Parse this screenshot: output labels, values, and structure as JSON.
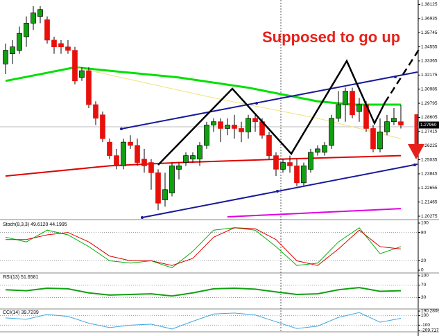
{
  "chart_data": [
    {
      "type": "candlestick",
      "ylim": [
        1.2016,
        1.3827
      ],
      "yticks": [
        1.20275,
        1.21465,
        1.22655,
        1.23845,
        1.25035,
        1.26225,
        1.27415,
        1.28605,
        1.29795,
        1.30985,
        1.32175,
        1.33365,
        1.34555,
        1.35745,
        1.36935,
        1.38125
      ],
      "annotation": "Supposed to go up",
      "last_price_label": "1.27960",
      "up_color": "#10a010",
      "down_color": "#e8100b",
      "ohlc": [
        [
          1.3311,
          1.3483,
          1.3225,
          1.3426
        ],
        [
          1.3397,
          1.3512,
          1.3311,
          1.3455
        ],
        [
          1.3426,
          1.3626,
          1.3397,
          1.3569
        ],
        [
          1.3541,
          1.3712,
          1.3455,
          1.3655
        ],
        [
          1.3655,
          1.3798,
          1.3598,
          1.3741
        ],
        [
          1.3712,
          1.3798,
          1.3655,
          1.377
        ],
        [
          1.3684,
          1.3712,
          1.3483,
          1.3512
        ],
        [
          1.3512,
          1.3541,
          1.3397,
          1.3455
        ],
        [
          1.3483,
          1.3512,
          1.3397,
          1.3455
        ],
        [
          1.3455,
          1.3512,
          1.3397,
          1.3426
        ],
        [
          1.3426,
          1.3455,
          1.3139,
          1.3168
        ],
        [
          1.3197,
          1.3283,
          1.3168,
          1.3254
        ],
        [
          1.3254,
          1.3283,
          1.2939,
          1.2968
        ],
        [
          1.2968,
          1.2996,
          1.2796,
          1.2853
        ],
        [
          1.2882,
          1.291,
          1.2652,
          1.2681
        ],
        [
          1.2652,
          1.2681,
          1.2509,
          1.2538
        ],
        [
          1.2538,
          1.2595,
          1.2423,
          1.2452
        ],
        [
          1.2452,
          1.2681,
          1.2423,
          1.2652
        ],
        [
          1.2652,
          1.271,
          1.2595,
          1.2624
        ],
        [
          1.2624,
          1.2681,
          1.2452,
          1.248
        ],
        [
          1.2509,
          1.2595,
          1.2394,
          1.2452
        ],
        [
          1.248,
          1.2509,
          1.2251,
          1.2394
        ],
        [
          1.2394,
          1.2423,
          1.2079,
          1.2137
        ],
        [
          1.2165,
          1.2394,
          1.2108,
          1.2251
        ],
        [
          1.2223,
          1.248,
          1.2194,
          1.2452
        ],
        [
          1.2423,
          1.248,
          1.2337,
          1.2452
        ],
        [
          1.248,
          1.2566,
          1.2452,
          1.2538
        ],
        [
          1.2509,
          1.2566,
          1.248,
          1.2538
        ],
        [
          1.2509,
          1.2652,
          1.2452,
          1.2624
        ],
        [
          1.2624,
          1.2824,
          1.2595,
          1.2796
        ],
        [
          1.2796,
          1.2853,
          1.2738,
          1.2824
        ],
        [
          1.2824,
          1.2853,
          1.2652,
          1.2767
        ],
        [
          1.2767,
          1.2853,
          1.271,
          1.2796
        ],
        [
          1.2796,
          1.2882,
          1.2681,
          1.2767
        ],
        [
          1.2767,
          1.2824,
          1.2652,
          1.2738
        ],
        [
          1.2738,
          1.2882,
          1.2681,
          1.2853
        ],
        [
          1.2853,
          1.2882,
          1.2738,
          1.2824
        ],
        [
          1.2824,
          1.2853,
          1.2681,
          1.271
        ],
        [
          1.271,
          1.2738,
          1.2509,
          1.2538
        ],
        [
          1.2538,
          1.2566,
          1.2366,
          1.2423
        ],
        [
          1.2423,
          1.2509,
          1.2394,
          1.248
        ],
        [
          1.248,
          1.2538,
          1.2394,
          1.2452
        ],
        [
          1.2452,
          1.2509,
          1.228,
          1.2309
        ],
        [
          1.2309,
          1.248,
          1.228,
          1.2452
        ],
        [
          1.2423,
          1.2595,
          1.2394,
          1.2566
        ],
        [
          1.2566,
          1.2624,
          1.2538,
          1.2595
        ],
        [
          1.2566,
          1.2652,
          1.2538,
          1.2624
        ],
        [
          1.2624,
          1.2882,
          1.2595,
          1.2853
        ],
        [
          1.2853,
          1.3082,
          1.2824,
          1.2968
        ],
        [
          1.2968,
          1.3111,
          1.2824,
          1.3082
        ],
        [
          1.3082,
          1.3111,
          1.2853,
          1.2882
        ],
        [
          1.291,
          1.3025,
          1.2824,
          1.2968
        ],
        [
          1.2968,
          1.2996,
          1.2738,
          1.2767
        ],
        [
          1.2767,
          1.2796,
          1.2566,
          1.2595
        ],
        [
          1.2595,
          1.2853,
          1.2566,
          1.2738
        ],
        [
          1.2738,
          1.2882,
          1.271,
          1.2824
        ],
        [
          1.2824,
          1.2939,
          1.2796,
          1.2853
        ],
        [
          1.2824,
          1.2968,
          1.2767,
          1.2796
        ]
      ],
      "series": [
        {
          "color": "#00e000",
          "width": 3,
          "x": [
            0,
            5,
            10,
            15,
            25,
            35,
            40,
            45,
            50,
            57
          ],
          "values": [
            1.3168,
            1.3225,
            1.3283,
            1.3254,
            1.3197,
            1.3111,
            1.3053,
            1.2996,
            1.2968,
            1.2968
          ]
        },
        {
          "color": "#f2e27a",
          "width": 1,
          "x": [
            10,
            30,
            45,
            57
          ],
          "values": [
            1.3283,
            1.3025,
            1.2853,
            1.2681
          ]
        },
        {
          "color": "#e00000",
          "width": 2,
          "x": [
            0,
            15,
            25,
            40,
            57
          ],
          "values": [
            1.2366,
            1.2452,
            1.248,
            1.2509,
            1.2538
          ]
        },
        {
          "color": "#e000e0",
          "width": 2,
          "x": [
            32,
            57
          ],
          "values": [
            1.2022,
            1.2091
          ]
        }
      ]
    },
    {
      "type": "line",
      "title": "Stoch(8,3,3) 49.6120 44.1995",
      "ylim": [
        0,
        100
      ],
      "yticks": [
        0,
        20,
        80,
        100
      ],
      "levels": [
        20,
        80
      ],
      "series": [
        {
          "color": "#00b000",
          "width": 1,
          "x": [
            0,
            3,
            6,
            9,
            12,
            15,
            18,
            21,
            24,
            27,
            30,
            33,
            36,
            39,
            42,
            45,
            48,
            51,
            54,
            57
          ],
          "values": [
            70,
            60,
            85,
            75,
            50,
            20,
            15,
            20,
            5,
            40,
            85,
            90,
            85,
            50,
            10,
            15,
            60,
            90,
            35,
            50
          ]
        },
        {
          "color": "#e00000",
          "width": 1,
          "x": [
            0,
            3,
            6,
            9,
            12,
            15,
            18,
            21,
            24,
            27,
            30,
            33,
            36,
            39,
            42,
            45,
            48,
            51,
            54,
            57
          ],
          "values": [
            65,
            65,
            75,
            80,
            60,
            30,
            20,
            20,
            10,
            25,
            70,
            90,
            88,
            65,
            20,
            10,
            45,
            85,
            50,
            45
          ]
        }
      ]
    },
    {
      "type": "line",
      "title": "RSI(13) 51.6581",
      "ylim": [
        0,
        100
      ],
      "yticks": [
        30,
        70,
        100
      ],
      "levels": [
        30,
        70
      ],
      "series": [
        {
          "color": "#10a010",
          "width": 2,
          "x": [
            0,
            3,
            6,
            9,
            12,
            15,
            18,
            21,
            24,
            27,
            30,
            33,
            36,
            39,
            42,
            45,
            48,
            51,
            54,
            57
          ],
          "values": [
            55,
            52,
            60,
            58,
            45,
            38,
            40,
            42,
            35,
            45,
            58,
            60,
            57,
            48,
            40,
            42,
            55,
            62,
            50,
            52
          ]
        }
      ]
    },
    {
      "type": "line",
      "title": "CCI(14) 39.7239",
      "ylim": [
        -209.7174,
        190.2808
      ],
      "yticks": [
        -100,
        100,
        {
          "value": 190.2808,
          "label": "190.2808"
        },
        {
          "value": -209.7174,
          "label": "-209.7174"
        }
      ],
      "levels": [
        -100,
        100
      ],
      "series": [
        {
          "color": "#40a8e0",
          "width": 1,
          "x": [
            0,
            3,
            6,
            9,
            12,
            15,
            18,
            21,
            24,
            27,
            30,
            33,
            36,
            39,
            42,
            45,
            48,
            51,
            54,
            57
          ],
          "values": [
            50,
            20,
            120,
            80,
            -60,
            -150,
            -100,
            -80,
            -180,
            -20,
            130,
            150,
            110,
            -30,
            -170,
            -120,
            60,
            160,
            -40,
            40
          ]
        }
      ]
    }
  ]
}
